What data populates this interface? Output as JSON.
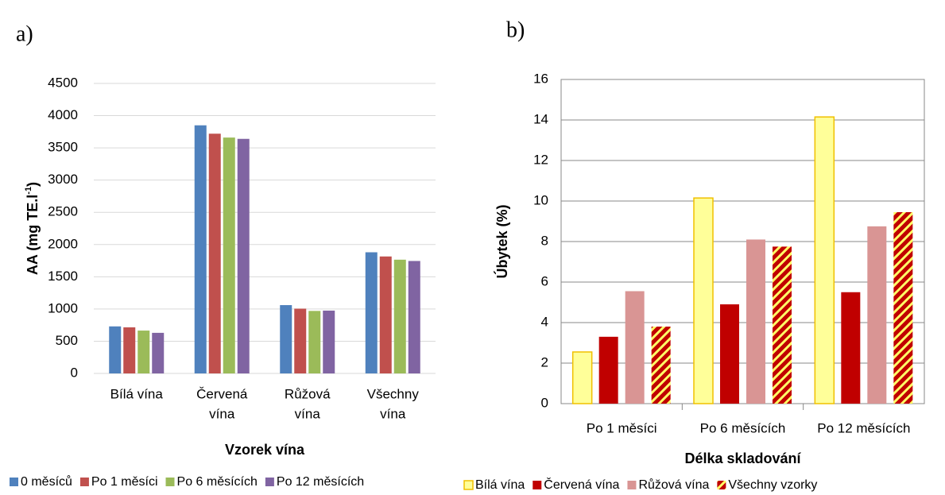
{
  "chart_data": [
    {
      "type": "bar",
      "panel_label": "a)",
      "ylabel_parts": [
        "AA (mg TE.l",
        "-1",
        ")"
      ],
      "xlabel": "Vzorek vína",
      "categories": [
        [
          "Bílá vína"
        ],
        [
          "Červená",
          "vína"
        ],
        [
          "Růžová",
          "vína"
        ],
        [
          "Všechny",
          "vína"
        ]
      ],
      "series": [
        {
          "name": "0 měsíců",
          "color": "#4f81bd",
          "values": [
            730,
            3850,
            1060,
            1880
          ]
        },
        {
          "name": "Po 1 měsíci",
          "color": "#c0504d",
          "values": [
            715,
            3720,
            1005,
            1815
          ]
        },
        {
          "name": "Po 6 měsících",
          "color": "#9bbb59",
          "values": [
            665,
            3660,
            970,
            1765
          ]
        },
        {
          "name": "Po 12 měsících",
          "color": "#8064a2",
          "values": [
            630,
            3640,
            975,
            1745
          ]
        }
      ],
      "ylim": [
        0,
        4500
      ],
      "yticks": [
        0,
        500,
        1000,
        1500,
        2000,
        2500,
        3000,
        3500,
        4000,
        4500
      ],
      "grid": true,
      "legend": "bottom"
    },
    {
      "type": "bar",
      "panel_label": "b)",
      "ylabel_parts": [
        "Úbytek (%)"
      ],
      "xlabel": "Délka skladování",
      "categories": [
        [
          "Po 1 měsíci"
        ],
        [
          "Po 6 měsících"
        ],
        [
          "Po 12 měsících"
        ]
      ],
      "series": [
        {
          "name": "Bílá vína",
          "color": "#ffff99",
          "edge": "#f0c000",
          "values": [
            2.55,
            10.15,
            14.15
          ]
        },
        {
          "name": "Červená vína",
          "color": "#c00000",
          "values": [
            3.3,
            4.9,
            5.5
          ]
        },
        {
          "name": "Růžová vína",
          "color": "#d99594",
          "values": [
            5.55,
            8.1,
            8.75
          ]
        },
        {
          "name": "Všechny vzorky",
          "color": "#c00000",
          "hatch": "#ffff66",
          "values": [
            3.8,
            7.75,
            9.45
          ]
        }
      ],
      "ylim": [
        0,
        16
      ],
      "yticks": [
        0,
        2,
        4,
        6,
        8,
        10,
        12,
        14,
        16
      ],
      "grid": true,
      "legend": "bottom"
    }
  ]
}
